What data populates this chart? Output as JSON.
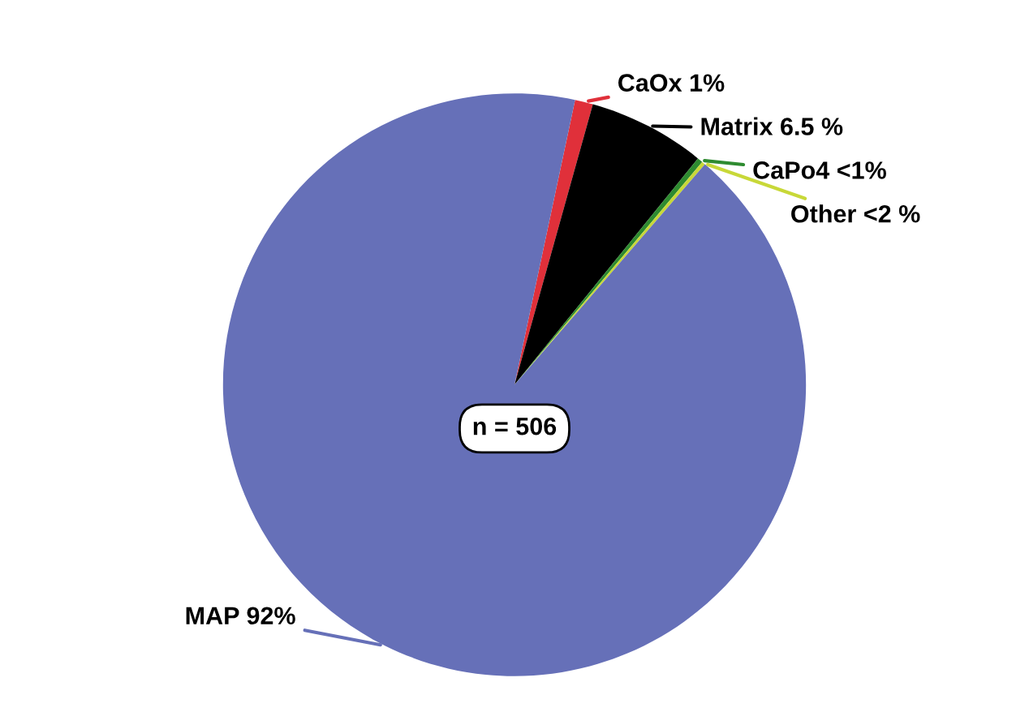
{
  "chart_data": {
    "type": "pie",
    "categories": [
      "CaOx",
      "Matrix",
      "CaPo4",
      "Other",
      "MAP"
    ],
    "values": [
      1,
      6.5,
      0.3,
      0.2,
      92
    ],
    "value_labels": [
      "1%",
      "6.5 %",
      "<1%",
      "<2 %",
      "92%"
    ],
    "colors": [
      "#e0303a",
      "#000000",
      "#2e8b30",
      "#c8d838",
      "#6670b8"
    ],
    "annotations": [
      "n = 506"
    ],
    "legend": false
  }
}
